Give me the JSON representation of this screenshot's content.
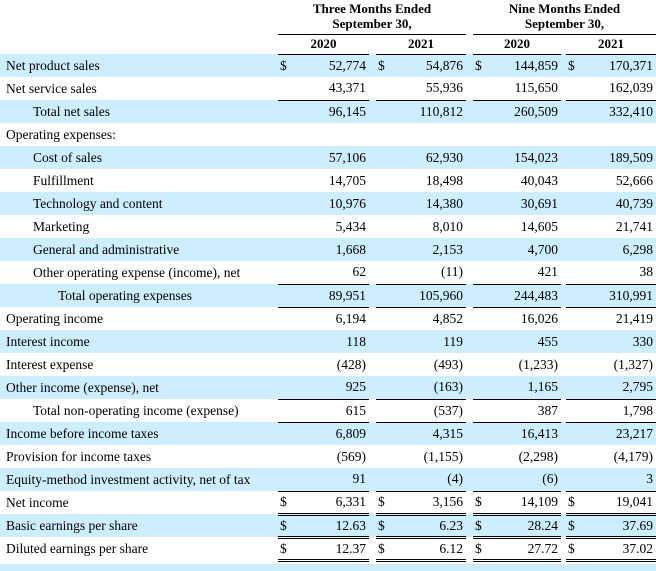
{
  "colors": {
    "row_shade": "#cceeff",
    "rule": "#000000",
    "text": "#000000",
    "background": "#ffffff"
  },
  "table": {
    "currency_symbol": "$",
    "groups": [
      {
        "title_line1": "Three Months Ended",
        "title_line2": "September 30,",
        "years": [
          "2020",
          "2021"
        ]
      },
      {
        "title_line1": "Nine Months Ended",
        "title_line2": "September 30,",
        "years": [
          "2020",
          "2021"
        ]
      }
    ],
    "rows": [
      {
        "label": "Net product sales",
        "indent": 0,
        "shaded": true,
        "dollar": true,
        "underline": "none",
        "values": [
          "52,774",
          "54,876",
          "144,859",
          "170,371"
        ]
      },
      {
        "label": "Net service sales",
        "indent": 0,
        "shaded": false,
        "dollar": false,
        "underline": "single",
        "values": [
          "43,371",
          "55,936",
          "115,650",
          "162,039"
        ]
      },
      {
        "label": "Total net sales",
        "indent": 1,
        "shaded": true,
        "dollar": false,
        "underline": "none",
        "values": [
          "96,145",
          "110,812",
          "260,509",
          "332,410"
        ]
      },
      {
        "label": "Operating expenses:",
        "indent": 0,
        "shaded": false,
        "dollar": false,
        "underline": "none",
        "values": [
          "",
          "",
          "",
          ""
        ]
      },
      {
        "label": "Cost of sales",
        "indent": 1,
        "shaded": true,
        "dollar": false,
        "underline": "none",
        "values": [
          "57,106",
          "62,930",
          "154,023",
          "189,509"
        ]
      },
      {
        "label": "Fulfillment",
        "indent": 1,
        "shaded": false,
        "dollar": false,
        "underline": "none",
        "values": [
          "14,705",
          "18,498",
          "40,043",
          "52,666"
        ]
      },
      {
        "label": "Technology and content",
        "indent": 1,
        "shaded": true,
        "dollar": false,
        "underline": "none",
        "values": [
          "10,976",
          "14,380",
          "30,691",
          "40,739"
        ]
      },
      {
        "label": "Marketing",
        "indent": 1,
        "shaded": false,
        "dollar": false,
        "underline": "none",
        "values": [
          "5,434",
          "8,010",
          "14,605",
          "21,741"
        ]
      },
      {
        "label": "General and administrative",
        "indent": 1,
        "shaded": true,
        "dollar": false,
        "underline": "none",
        "values": [
          "1,668",
          "2,153",
          "4,700",
          "6,298"
        ]
      },
      {
        "label": "Other operating expense (income), net",
        "indent": 1,
        "shaded": false,
        "dollar": false,
        "underline": "single",
        "values": [
          "62",
          "(11)",
          "421",
          "38"
        ]
      },
      {
        "label": "Total operating expenses",
        "indent": 2,
        "shaded": true,
        "dollar": false,
        "underline": "single",
        "values": [
          "89,951",
          "105,960",
          "244,483",
          "310,991"
        ]
      },
      {
        "label": "Operating income",
        "indent": 0,
        "shaded": false,
        "dollar": false,
        "underline": "none",
        "values": [
          "6,194",
          "4,852",
          "16,026",
          "21,419"
        ]
      },
      {
        "label": "Interest income",
        "indent": 0,
        "shaded": true,
        "dollar": false,
        "underline": "none",
        "values": [
          "118",
          "119",
          "455",
          "330"
        ]
      },
      {
        "label": "Interest expense",
        "indent": 0,
        "shaded": false,
        "dollar": false,
        "underline": "none",
        "values": [
          "(428)",
          "(493)",
          "(1,233)",
          "(1,327)"
        ]
      },
      {
        "label": "Other income (expense), net",
        "indent": 0,
        "shaded": true,
        "dollar": false,
        "underline": "single",
        "values": [
          "925",
          "(163)",
          "1,165",
          "2,795"
        ]
      },
      {
        "label": "Total non-operating income (expense)",
        "indent": 1,
        "shaded": false,
        "dollar": false,
        "underline": "single",
        "values": [
          "615",
          "(537)",
          "387",
          "1,798"
        ]
      },
      {
        "label": "Income before income taxes",
        "indent": 0,
        "shaded": true,
        "dollar": false,
        "underline": "none",
        "values": [
          "6,809",
          "4,315",
          "16,413",
          "23,217"
        ]
      },
      {
        "label": "Provision for income taxes",
        "indent": 0,
        "shaded": false,
        "dollar": false,
        "underline": "none",
        "values": [
          "(569)",
          "(1,155)",
          "(2,298)",
          "(4,179)"
        ]
      },
      {
        "label": "Equity-method investment activity, net of tax",
        "indent": 0,
        "shaded": true,
        "dollar": false,
        "underline": "single",
        "values": [
          "91",
          "(4)",
          "(6)",
          "3"
        ]
      },
      {
        "label": "Net income",
        "indent": 0,
        "shaded": false,
        "dollar": true,
        "underline": "double",
        "values": [
          "6,331",
          "3,156",
          "14,109",
          "19,041"
        ]
      },
      {
        "label": "Basic earnings per share",
        "indent": 0,
        "shaded": true,
        "dollar": true,
        "underline": "double",
        "values": [
          "12.63",
          "6.23",
          "28.24",
          "37.69"
        ]
      },
      {
        "label": "Diluted earnings per share",
        "indent": 0,
        "shaded": false,
        "dollar": true,
        "underline": "double",
        "values": [
          "12.37",
          "6.12",
          "27.72",
          "37.02"
        ]
      }
    ]
  }
}
